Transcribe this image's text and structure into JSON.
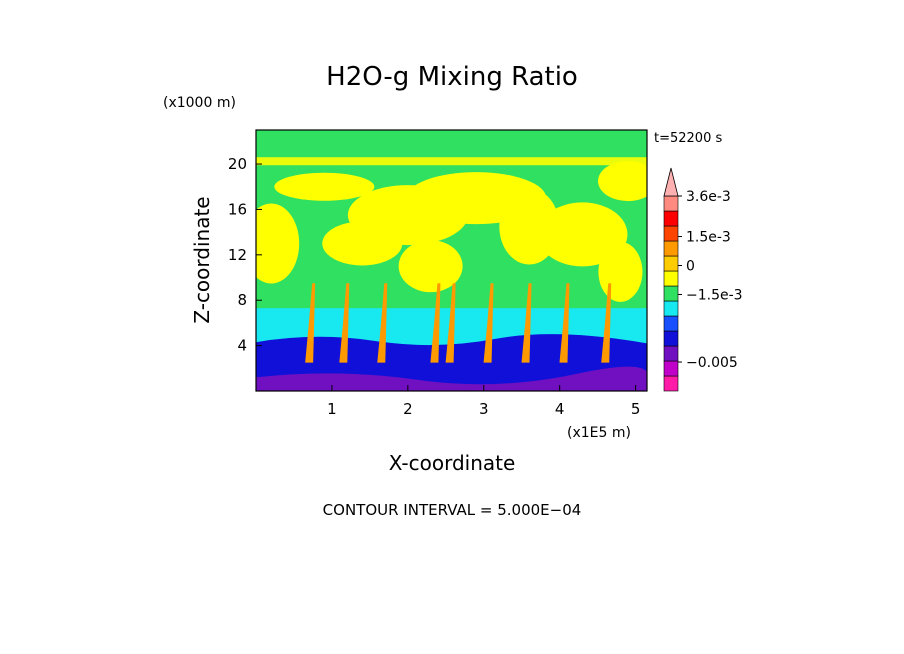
{
  "chart_data": {
    "type": "heatmap",
    "title": "H2O-g Mixing Ratio",
    "time_label": "t=52200 s",
    "xlabel": "X-coordinate",
    "ylabel": "Z-coordinate",
    "x_scale_label": "(x1E5 m)",
    "y_scale_label": "(x1000 m)",
    "xlim": [
      0,
      5.15
    ],
    "ylim": [
      0,
      23
    ],
    "x_ticks": [
      1,
      2,
      3,
      4,
      5
    ],
    "y_ticks": [
      4,
      8,
      12,
      16,
      20
    ],
    "colorbar": {
      "labels": [
        {
          "text": "3.6e-3",
          "value": 0.0036
        },
        {
          "text": "1.5e-3",
          "value": 0.0015
        },
        {
          "text": "0",
          "value": 0
        },
        {
          "text": "−1.5e-3",
          "value": -0.0015
        },
        {
          "text": "−0.005",
          "value": -0.005
        }
      ],
      "colors": [
        "#ff1aa8",
        "#c000c8",
        "#7010c0",
        "#1010d8",
        "#1850ff",
        "#18e8f0",
        "#30e060",
        "#ffff00",
        "#ffcc00",
        "#ff9900",
        "#ff4400",
        "#ff0000",
        "#ff8a80",
        "#ffb0b0"
      ]
    },
    "footer": "CONTOUR INTERVAL = 5.000E−04"
  }
}
